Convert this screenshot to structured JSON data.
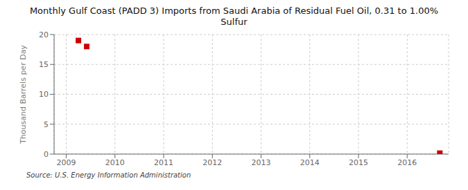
{
  "chart_data": {
    "type": "scatter",
    "title": "Monthly Gulf Coast (PADD 3) Imports from Saudi Arabia of Residual Fuel Oil, 0.31 to 1.00%\nSulfur",
    "ylabel": "Thousand Barrels per Day",
    "source": "Source: U.S. Energy Information Administration",
    "x": [
      2009.25,
      2009.42,
      2016.67
    ],
    "values": [
      19.0,
      18.0,
      0.15
    ],
    "color": "#cc0000",
    "marker": "square",
    "xlim": [
      2008.75,
      2016.85
    ],
    "ylim": [
      0,
      20
    ],
    "xticks": [
      2009,
      2010,
      2011,
      2012,
      2013,
      2014,
      2015,
      2016
    ],
    "yticks": [
      0,
      5,
      10,
      15,
      20
    ],
    "grid": true
  }
}
